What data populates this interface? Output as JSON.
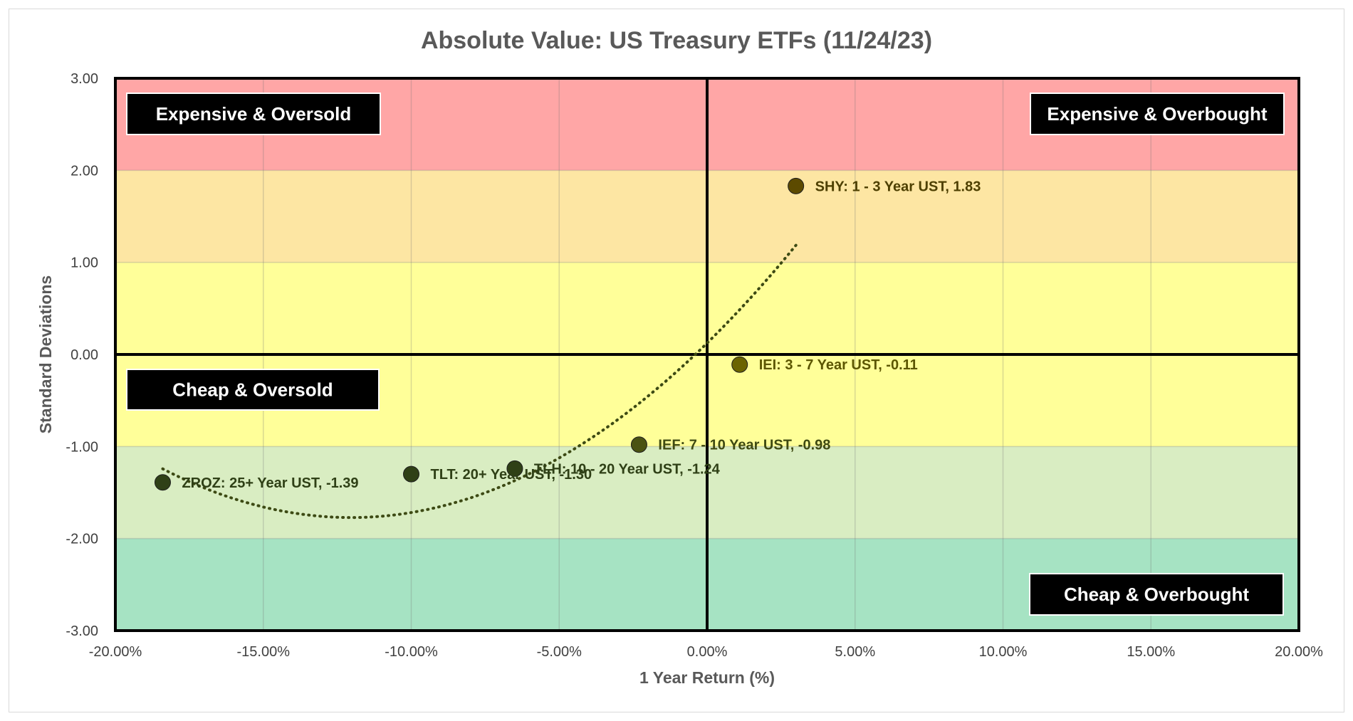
{
  "chart_data": {
    "type": "scatter",
    "title": "Absolute Value: US Treasury ETFs (11/24/23)",
    "xlabel": "1 Year Return (%)",
    "ylabel": "Standard Deviations",
    "xlim": [
      -20,
      20
    ],
    "ylim": [
      -3,
      3
    ],
    "x_ticks": [
      "-20.00%",
      "-15.00%",
      "-10.00%",
      "-5.00%",
      "0.00%",
      "5.00%",
      "10.00%",
      "15.00%",
      "20.00%"
    ],
    "y_ticks": [
      "3.00",
      "2.00",
      "1.00",
      "0.00",
      "-1.00",
      "-2.00",
      "-3.00"
    ],
    "grid": true,
    "bands": [
      {
        "from": 2,
        "to": 3,
        "color": "#FFA6A6"
      },
      {
        "from": 1,
        "to": 2,
        "color": "#FDE6A3"
      },
      {
        "from": -1,
        "to": 1,
        "color": "#FFFF99"
      },
      {
        "from": -2,
        "to": -1,
        "color": "#D9EDC2"
      },
      {
        "from": -3,
        "to": -2,
        "color": "#A6E3C3"
      }
    ],
    "points": [
      {
        "x": 3.0,
        "y": 1.83,
        "label": "SHY: 1 - 3 Year UST, 1.83",
        "color": "#5C4A00",
        "text_color": "#4D3F00"
      },
      {
        "x": 1.1,
        "y": -0.11,
        "label": "IEI: 3 - 7 Year UST, -0.11",
        "color": "#6B6400",
        "text_color": "#5C5600"
      },
      {
        "x": -2.3,
        "y": -0.98,
        "label": "IEF: 7 - 10 Year UST, -0.98",
        "color": "#4A5212",
        "text_color": "#3F4A12"
      },
      {
        "x": -6.5,
        "y": -1.24,
        "label": "TLH: 10 - 20 Year UST, -1.24",
        "color": "#2F4016",
        "text_color": "#2F4016"
      },
      {
        "x": -10.0,
        "y": -1.3,
        "label": "TLT: 20+ Year UST, -1.30",
        "color": "#2F4016",
        "text_color": "#2F4016"
      },
      {
        "x": -18.4,
        "y": -1.39,
        "label": "ZROZ: 25+ Year UST, -1.39",
        "color": "#2F4016",
        "text_color": "#2F4016"
      }
    ],
    "trendline": {
      "type": "polynomial",
      "style": "dotted",
      "color": "#3D4A14",
      "x_from": -18.4,
      "x_to": 3.0
    },
    "quadrant_labels": {
      "top_left": "Expensive & Oversold",
      "top_right": "Expensive & Overbought",
      "mid_left": "Cheap & Oversold",
      "bottom_right": "Cheap & Overbought"
    }
  }
}
